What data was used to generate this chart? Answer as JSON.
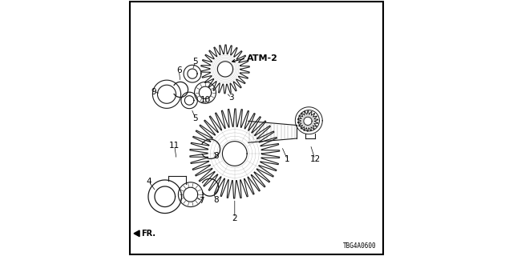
{
  "background_color": "#ffffff",
  "border_color": "#000000",
  "diagram_code": "TBG4A0600",
  "atm_label": "ATM-2",
  "fr_label": "FR.",
  "gc": "#1a1a1a"
}
